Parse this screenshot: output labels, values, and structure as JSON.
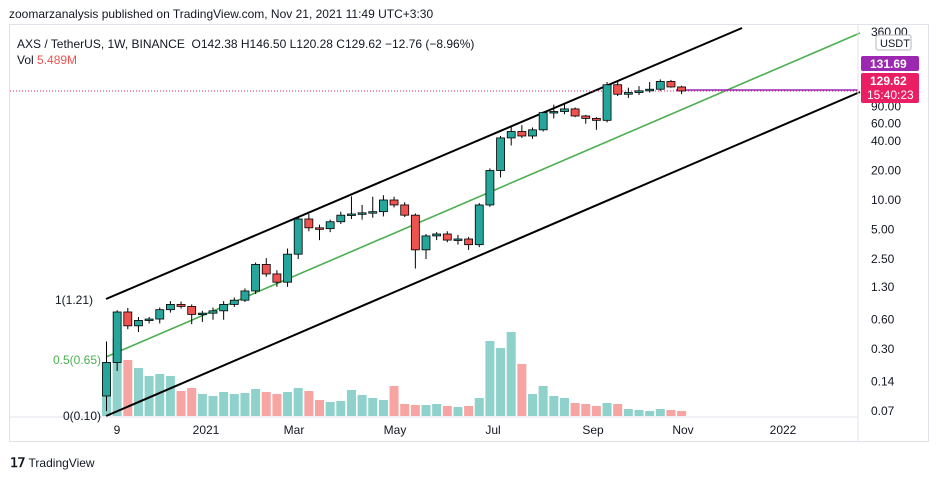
{
  "header": {
    "attribution": "zoomarzanalysis published on TradingView.com, Nov 21, 2021 11:49 UTC+3:30"
  },
  "legend": {
    "title": "AXS / TetherUS, 1W, BINANCE",
    "ohlc": "O142.38  H146.50  L120.28  C129.62  −12.76 (−8.96%)",
    "vol_label": "Vol",
    "vol_value": "5.489M"
  },
  "footer": {
    "brand": "TradingView",
    "logo": "tv-logo-icon"
  },
  "colors": {
    "up": "#26a69a",
    "down": "#ef5350",
    "up_vol": "#8fd2cb",
    "down_vol": "#f6a5a3",
    "channel": "#000000",
    "mid": "#4caf50",
    "price_tag": "#e91e63",
    "high_tag": "#9c27b0"
  },
  "chart_data": {
    "type": "candlestick",
    "scale": "log",
    "currency_badge": "USDT",
    "price_axis_ticks": [
      "360.00",
      "90.00",
      "60.00",
      "40.00",
      "20.00",
      "10.00",
      "5.00",
      "2.50",
      "1.30",
      "0.60",
      "0.30",
      "0.14",
      "0.07"
    ],
    "time_axis_labels": [
      "9",
      "2021",
      "Mar",
      "May",
      "Jul",
      "Sep",
      "Nov",
      "2022"
    ],
    "price_tags": [
      {
        "label": "131.69",
        "value": 131.69
      },
      {
        "label": "129.62",
        "value": 129.62
      },
      {
        "label": "15:40:23",
        "value": 129.62
      }
    ],
    "fib_levels": [
      {
        "label": "1(1.21)",
        "value": 1.21
      },
      {
        "label": "0.5(0.65)",
        "value": 0.65
      },
      {
        "label": "0(0.10)",
        "value": 0.1
      }
    ],
    "candles": [
      {
        "o": 0.1,
        "h": 0.36,
        "l": 0.07,
        "c": 0.22
      },
      {
        "o": 0.22,
        "h": 0.75,
        "l": 0.18,
        "c": 0.72
      },
      {
        "o": 0.72,
        "h": 0.79,
        "l": 0.48,
        "c": 0.52
      },
      {
        "o": 0.52,
        "h": 0.64,
        "l": 0.45,
        "c": 0.59
      },
      {
        "o": 0.59,
        "h": 0.64,
        "l": 0.55,
        "c": 0.61
      },
      {
        "o": 0.61,
        "h": 0.8,
        "l": 0.55,
        "c": 0.76
      },
      {
        "o": 0.76,
        "h": 0.93,
        "l": 0.71,
        "c": 0.86
      },
      {
        "o": 0.86,
        "h": 0.92,
        "l": 0.78,
        "c": 0.82
      },
      {
        "o": 0.82,
        "h": 0.86,
        "l": 0.54,
        "c": 0.68
      },
      {
        "o": 0.68,
        "h": 0.74,
        "l": 0.57,
        "c": 0.7
      },
      {
        "o": 0.7,
        "h": 0.8,
        "l": 0.6,
        "c": 0.74
      },
      {
        "o": 0.74,
        "h": 0.93,
        "l": 0.6,
        "c": 0.86
      },
      {
        "o": 0.86,
        "h": 1.01,
        "l": 0.81,
        "c": 0.95
      },
      {
        "o": 0.95,
        "h": 1.25,
        "l": 0.91,
        "c": 1.18
      },
      {
        "o": 1.18,
        "h": 2.3,
        "l": 1.1,
        "c": 2.2
      },
      {
        "o": 2.2,
        "h": 2.55,
        "l": 1.65,
        "c": 1.76
      },
      {
        "o": 1.76,
        "h": 1.92,
        "l": 1.3,
        "c": 1.45
      },
      {
        "o": 1.45,
        "h": 3.2,
        "l": 1.3,
        "c": 2.8
      },
      {
        "o": 2.8,
        "h": 6.7,
        "l": 2.5,
        "c": 6.4
      },
      {
        "o": 6.4,
        "h": 7.2,
        "l": 4.8,
        "c": 5.2
      },
      {
        "o": 5.2,
        "h": 5.6,
        "l": 3.9,
        "c": 5.1
      },
      {
        "o": 5.1,
        "h": 6.3,
        "l": 4.7,
        "c": 6.0
      },
      {
        "o": 6.0,
        "h": 7.6,
        "l": 5.7,
        "c": 7.0
      },
      {
        "o": 7.0,
        "h": 10.9,
        "l": 6.4,
        "c": 7.2
      },
      {
        "o": 7.2,
        "h": 8.9,
        "l": 6.3,
        "c": 7.4
      },
      {
        "o": 7.4,
        "h": 10.8,
        "l": 6.6,
        "c": 7.6
      },
      {
        "o": 7.6,
        "h": 11.2,
        "l": 6.8,
        "c": 10.0
      },
      {
        "o": 10.0,
        "h": 10.8,
        "l": 8.4,
        "c": 8.9
      },
      {
        "o": 8.9,
        "h": 9.5,
        "l": 6.7,
        "c": 7.0
      },
      {
        "o": 7.0,
        "h": 7.3,
        "l": 2.0,
        "c": 3.1
      },
      {
        "o": 3.1,
        "h": 4.5,
        "l": 2.5,
        "c": 4.3
      },
      {
        "o": 4.3,
        "h": 4.7,
        "l": 3.9,
        "c": 4.5
      },
      {
        "o": 4.5,
        "h": 4.8,
        "l": 3.7,
        "c": 3.9
      },
      {
        "o": 3.9,
        "h": 4.4,
        "l": 3.5,
        "c": 4.0
      },
      {
        "o": 4.0,
        "h": 4.2,
        "l": 3.1,
        "c": 3.5
      },
      {
        "o": 3.5,
        "h": 9.3,
        "l": 3.3,
        "c": 8.9
      },
      {
        "o": 8.9,
        "h": 21.0,
        "l": 8.5,
        "c": 20.0
      },
      {
        "o": 20.0,
        "h": 45.0,
        "l": 17.0,
        "c": 43.0
      },
      {
        "o": 43.0,
        "h": 57.0,
        "l": 36.0,
        "c": 50.0
      },
      {
        "o": 50.0,
        "h": 58.0,
        "l": 43.0,
        "c": 45.0
      },
      {
        "o": 45.0,
        "h": 55.0,
        "l": 42.0,
        "c": 52.0
      },
      {
        "o": 52.0,
        "h": 80.0,
        "l": 50.0,
        "c": 78.0
      },
      {
        "o": 78.0,
        "h": 94.0,
        "l": 68.0,
        "c": 80.0
      },
      {
        "o": 80.0,
        "h": 95.0,
        "l": 75.0,
        "c": 85.0
      },
      {
        "o": 85.0,
        "h": 88.0,
        "l": 70.0,
        "c": 72.0
      },
      {
        "o": 72.0,
        "h": 74.0,
        "l": 60.0,
        "c": 68.0
      },
      {
        "o": 68.0,
        "h": 70.0,
        "l": 52.0,
        "c": 65.0
      },
      {
        "o": 65.0,
        "h": 160.0,
        "l": 62.0,
        "c": 150.0
      },
      {
        "o": 150.0,
        "h": 165.0,
        "l": 115.0,
        "c": 120.0
      },
      {
        "o": 120.0,
        "h": 140.0,
        "l": 110.0,
        "c": 125.0
      },
      {
        "o": 125.0,
        "h": 145.0,
        "l": 118.0,
        "c": 130.0
      },
      {
        "o": 130.0,
        "h": 160.0,
        "l": 125.0,
        "c": 135.0
      },
      {
        "o": 135.0,
        "h": 170.0,
        "l": 130.0,
        "c": 162.0
      },
      {
        "o": 162.0,
        "h": 168.0,
        "l": 140.0,
        "c": 142.38
      },
      {
        "o": 142.38,
        "h": 146.5,
        "l": 120.28,
        "c": 129.62
      }
    ],
    "volume": [
      0.45,
      0.78,
      0.56,
      0.48,
      0.4,
      0.42,
      0.4,
      0.25,
      0.28,
      0.22,
      0.2,
      0.24,
      0.22,
      0.23,
      0.27,
      0.24,
      0.22,
      0.24,
      0.28,
      0.25,
      0.16,
      0.14,
      0.15,
      0.26,
      0.21,
      0.18,
      0.16,
      0.3,
      0.12,
      0.11,
      0.11,
      0.12,
      0.1,
      0.09,
      0.1,
      0.18,
      0.75,
      0.68,
      0.84,
      0.52,
      0.22,
      0.3,
      0.2,
      0.18,
      0.13,
      0.12,
      0.1,
      0.13,
      0.12,
      0.07,
      0.06,
      0.05,
      0.07,
      0.06,
      0.05
    ]
  }
}
